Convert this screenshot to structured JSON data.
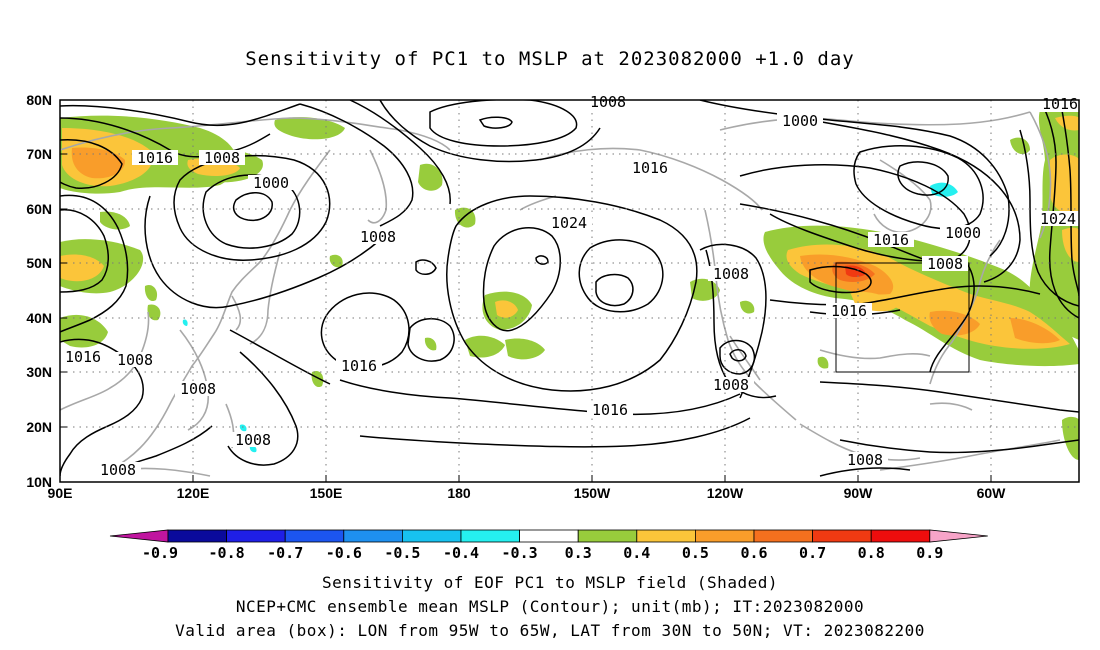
{
  "title": "Sensitivity of PC1 to MSLP at 2023082000 +1.0 day",
  "map": {
    "lat_labels": [
      "80N",
      "70N",
      "60N",
      "50N",
      "40N",
      "30N",
      "20N",
      "10N"
    ],
    "lon_labels": [
      "90E",
      "120E",
      "150E",
      "180",
      "150W",
      "120W",
      "90W",
      "60W"
    ],
    "contour_labels": [
      {
        "text": "1016"
      },
      {
        "text": "1008"
      },
      {
        "text": "1000"
      },
      {
        "text": "1016"
      },
      {
        "text": "1008"
      },
      {
        "text": "1024"
      },
      {
        "text": "1016"
      },
      {
        "text": "1016"
      },
      {
        "text": "1016"
      },
      {
        "text": "1008"
      },
      {
        "text": "1008"
      },
      {
        "text": "1008"
      },
      {
        "text": "1008"
      },
      {
        "text": "1008"
      },
      {
        "text": "1000"
      },
      {
        "text": "1016"
      },
      {
        "text": "1000"
      },
      {
        "text": "1008"
      },
      {
        "text": "1016"
      },
      {
        "text": "1024"
      },
      {
        "text": "1008"
      },
      {
        "text": "1008"
      },
      {
        "text": "1008"
      },
      {
        "text": "1016"
      },
      {
        "text": "1016"
      }
    ],
    "valid_box": {
      "lon_from": "95W",
      "lon_to": "65W",
      "lat_from": "30N",
      "lat_to": "50N"
    }
  },
  "colorbar": {
    "labels": [
      "-0.9",
      "-0.8",
      "-0.7",
      "-0.6",
      "-0.5",
      "-0.4",
      "-0.3",
      "0.3",
      "0.4",
      "0.5",
      "0.6",
      "0.7",
      "0.8",
      "0.9"
    ],
    "colors": [
      "#c0159f",
      "#0a0a9c",
      "#1f1fe6",
      "#1c55f0",
      "#1e90f0",
      "#17c2f0",
      "#25f0f0",
      "#ffffff",
      "#98cc3c",
      "#fbc53a",
      "#f99d2a",
      "#f5701e",
      "#f03a12",
      "#ee0d0d",
      "#f7a4c8"
    ]
  },
  "captions": [
    "Sensitivity of EOF PC1 to MSLP field (Shaded)",
    "NCEP+CMC ensemble mean MSLP (Contour); unit(mb); IT:2023082000",
    "Valid area (box): LON from 95W to 65W, LAT from 30N to 50N; VT: 2023082200"
  ]
}
